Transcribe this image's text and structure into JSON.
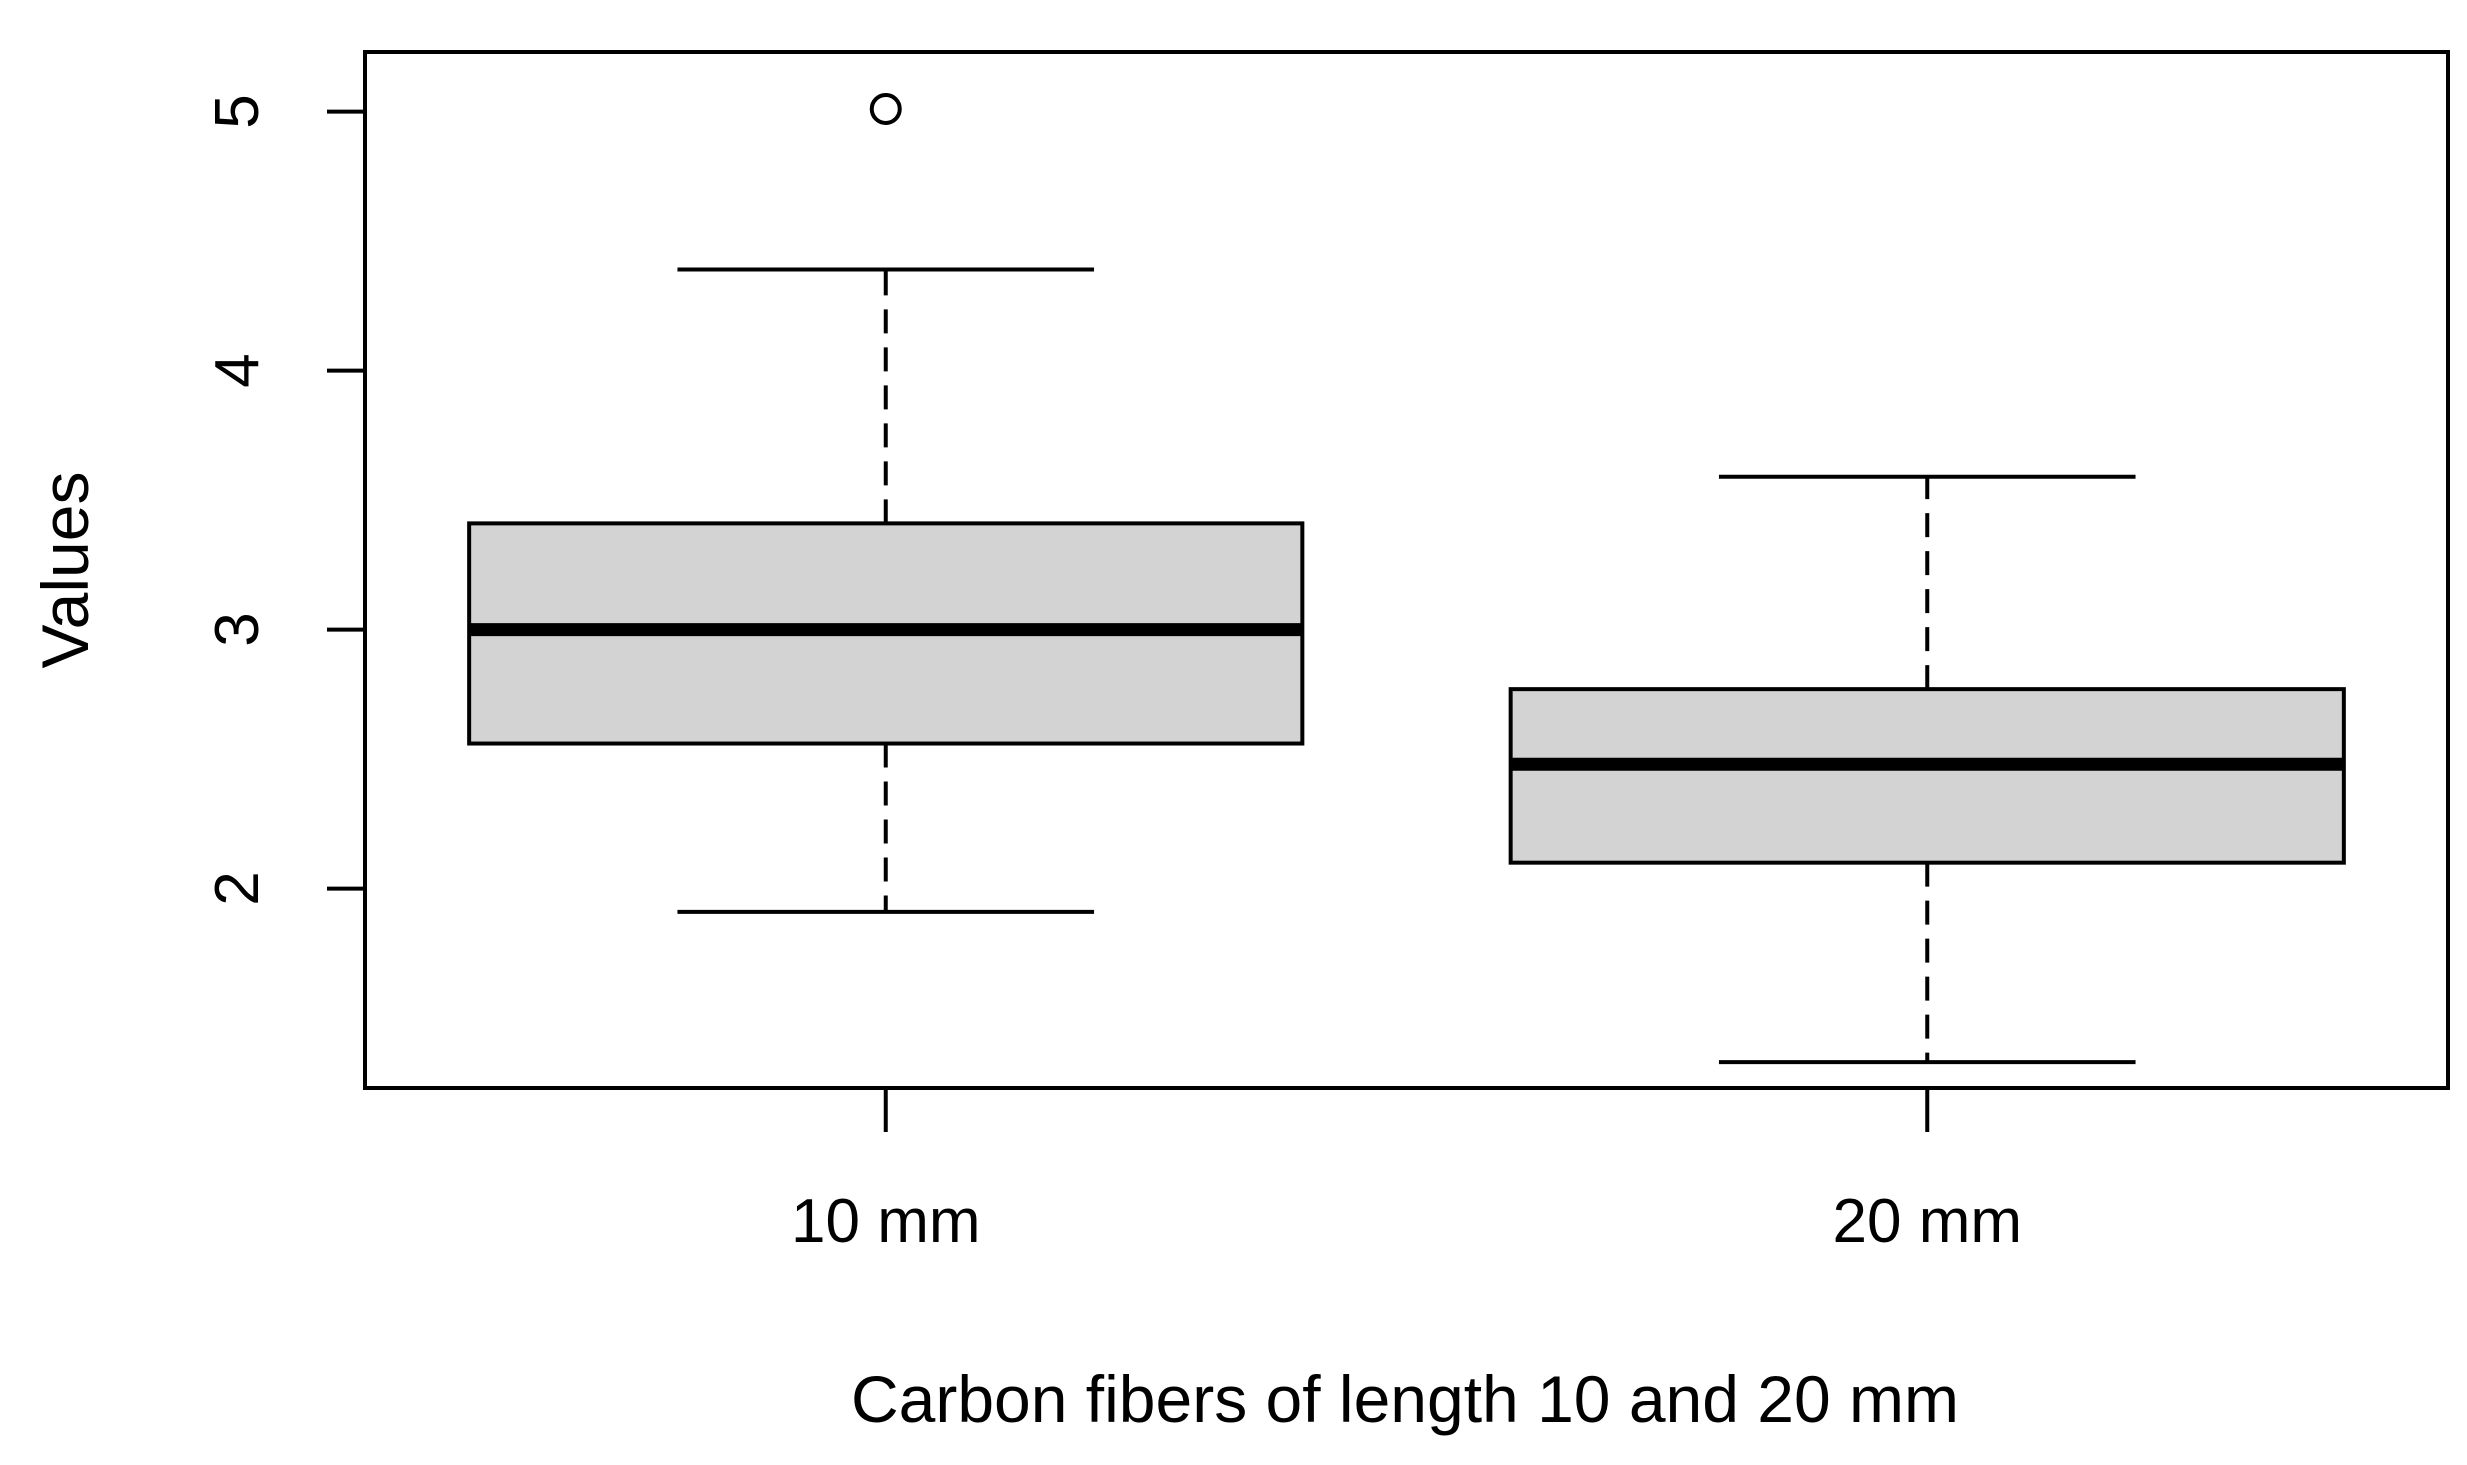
{
  "chart_data": {
    "type": "box",
    "title": "",
    "xlabel": "Carbon fibers of length 10 and 20 mm",
    "ylabel": "Values",
    "ylim": [
      1.23,
      5.23
    ],
    "yticks": [
      2,
      3,
      4,
      5
    ],
    "grid": false,
    "legend": "none",
    "box_fill": "#d3d3d3",
    "categories": [
      "10 mm",
      "20 mm"
    ],
    "boxes": [
      {
        "category": "10 mm",
        "whisker_low": 1.91,
        "q1": 2.56,
        "median": 3.0,
        "q3": 3.41,
        "whisker_high": 4.39,
        "outliers": [
          5.01
        ]
      },
      {
        "category": "20 mm",
        "whisker_low": 1.33,
        "q1": 2.1,
        "median": 2.48,
        "q3": 2.77,
        "whisker_high": 3.59,
        "outliers": []
      }
    ]
  }
}
